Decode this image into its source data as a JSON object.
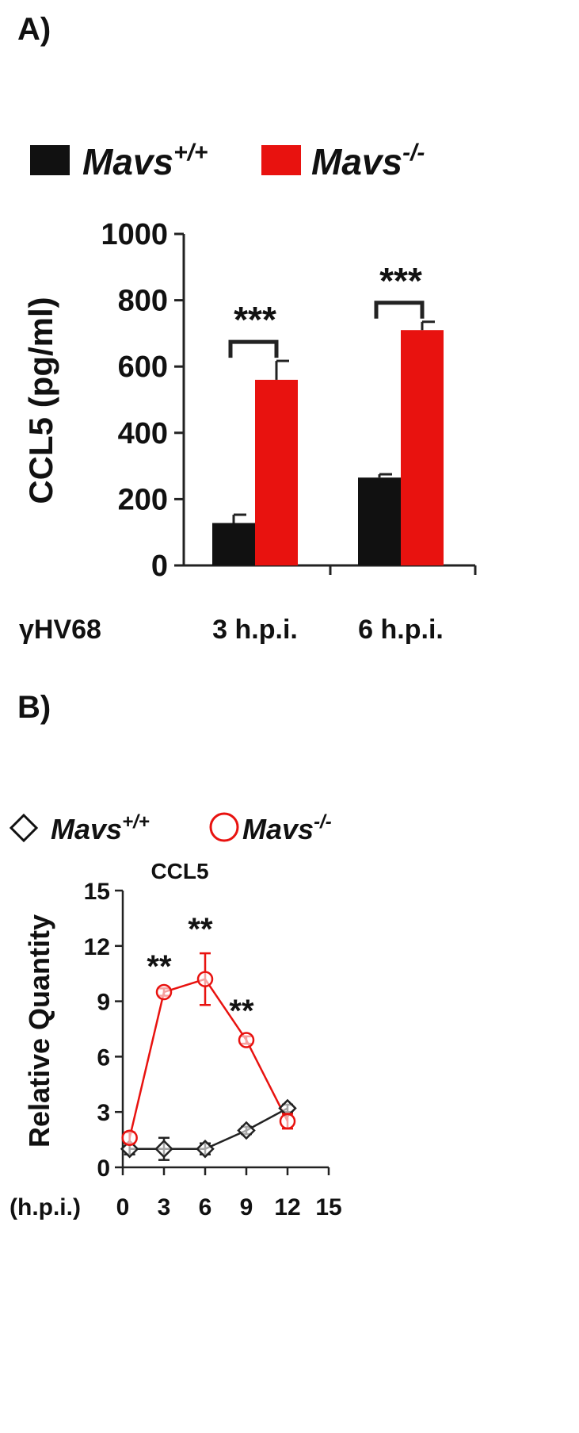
{
  "colors": {
    "black_series": "#111111",
    "red_series": "#e8120f",
    "axis": "#222222",
    "marker_black": "#222222"
  },
  "chart_data": [
    {
      "panel_label": "A)",
      "type": "bar",
      "legend": {
        "series1": {
          "name": "Mavs",
          "sup": "+/+"
        },
        "series2": {
          "name": "Mavs",
          "sup": "-/-"
        }
      },
      "ylabel": "CCL5 (pg/ml)",
      "x_prefix": "γHV68",
      "categories": [
        "3 h.p.i.",
        "6 h.p.i."
      ],
      "series": [
        {
          "name": "Mavs+/+",
          "values": [
            128,
            265
          ],
          "errors": [
            25,
            10
          ]
        },
        {
          "name": "Mavs-/-",
          "values": [
            560,
            710
          ],
          "errors": [
            57,
            25
          ]
        }
      ],
      "yticks": [
        "0",
        "200",
        "400",
        "600",
        "800",
        "1000"
      ],
      "ylim": [
        0,
        1000
      ],
      "significance": [
        "***",
        "***"
      ]
    },
    {
      "panel_label": "B)",
      "type": "line",
      "title": "CCL5",
      "legend": {
        "series1": {
          "name": "Mavs",
          "sup": "+/+"
        },
        "series2": {
          "name": "Mavs",
          "sup": "-/-"
        }
      },
      "ylabel": "Relative Quantity",
      "xlabel": "(h.p.i.)",
      "x": [
        0.5,
        3,
        6,
        9,
        12
      ],
      "series": [
        {
          "name": "Mavs+/+",
          "values": [
            1.0,
            1.0,
            1.0,
            2.0,
            3.2
          ],
          "errors": [
            0.3,
            0.6,
            0.3,
            0.2,
            0.2
          ]
        },
        {
          "name": "Mavs-/-",
          "values": [
            1.6,
            9.5,
            10.2,
            6.9,
            2.5
          ],
          "errors": [
            0.3,
            0.2,
            1.4,
            0.2,
            0.4
          ]
        }
      ],
      "xticks": [
        "0",
        "3",
        "6",
        "9",
        "12",
        "15"
      ],
      "yticks": [
        "0",
        "3",
        "6",
        "9",
        "12",
        "15"
      ],
      "xlim": [
        0,
        15
      ],
      "ylim": [
        0,
        15
      ],
      "significance": [
        {
          "x": 3,
          "label": "**"
        },
        {
          "x": 6,
          "label": "**"
        },
        {
          "x": 9,
          "label": "**"
        }
      ]
    }
  ]
}
